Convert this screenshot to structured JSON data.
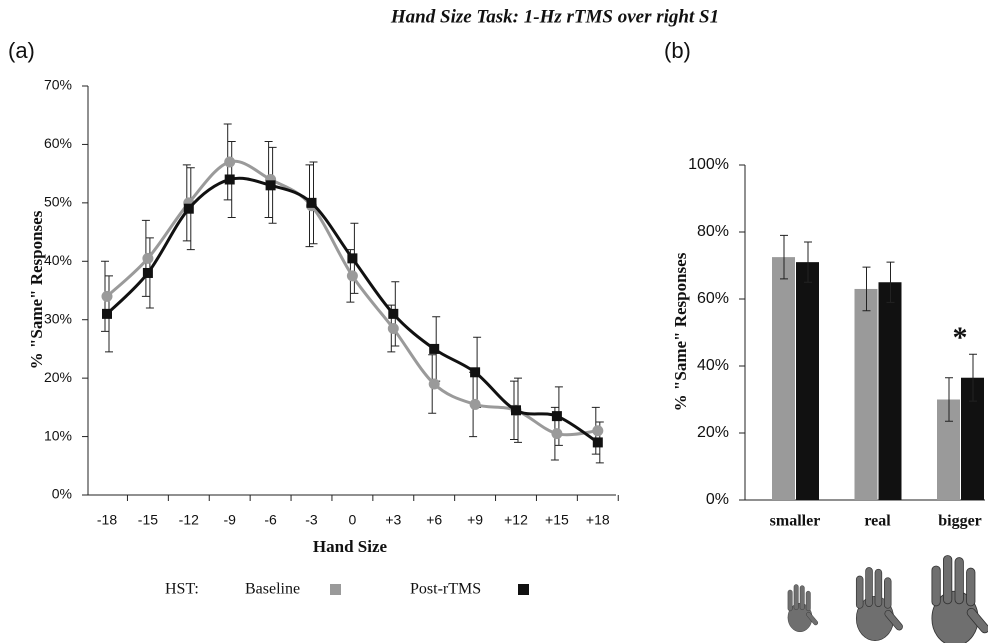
{
  "title": "Hand Size Task: 1-Hz rTMS over right S1",
  "legend_label": "HST:",
  "chart_data": [
    {
      "type": "line",
      "panel": "(a)",
      "x_label": "Hand Size",
      "y_label": "% \"Same\" Responses",
      "categories": [
        "-18",
        "-15",
        "-12",
        "-9",
        "-6",
        "-3",
        "0",
        "+3",
        "+6",
        "+9",
        "+12",
        "+15",
        "+18"
      ],
      "series": [
        {
          "name": "Baseline",
          "color": "#9a9a9a",
          "marker": "circle",
          "values": [
            34,
            40.5,
            50,
            57,
            54,
            49.5,
            37.5,
            28.5,
            19,
            15.5,
            14.5,
            10.5,
            11
          ],
          "errors": [
            6,
            6.5,
            6.5,
            6.5,
            6.5,
            7,
            4.5,
            4,
            5,
            5.5,
            5,
            4.5,
            4
          ]
        },
        {
          "name": "Post-rTMS",
          "color": "#111111",
          "marker": "square",
          "values": [
            31,
            38,
            49,
            54,
            53,
            50,
            40.5,
            31,
            25,
            21,
            14.5,
            13.5,
            9
          ],
          "errors": [
            6.5,
            6,
            7,
            6.5,
            6.5,
            7,
            6,
            5.5,
            5.5,
            6,
            5.5,
            5,
            3.5
          ]
        }
      ],
      "ylim": [
        0,
        70
      ],
      "yticks": [
        {
          "value": 0,
          "label": "0%"
        },
        {
          "value": 10,
          "label": "10%"
        },
        {
          "value": 20,
          "label": "20%"
        },
        {
          "value": 30,
          "label": "30%"
        },
        {
          "value": 40,
          "label": "40%"
        },
        {
          "value": 50,
          "label": "50%"
        },
        {
          "value": 60,
          "label": "60%"
        },
        {
          "value": 70,
          "label": "70%"
        }
      ]
    },
    {
      "type": "bar",
      "panel": "(b)",
      "y_label": "% \"Same\" Responses",
      "categories": [
        "smaller",
        "real",
        "bigger"
      ],
      "series": [
        {
          "color": "#9a9a9a",
          "values": [
            72.5,
            63,
            30
          ],
          "errors": [
            6.5,
            6.5,
            6.5
          ]
        },
        {
          "color": "#111111",
          "values": [
            71,
            65,
            36.5
          ],
          "errors": [
            6,
            6,
            7
          ]
        }
      ],
      "annotation": "*",
      "ylim": [
        0,
        100
      ],
      "yticks": [
        {
          "value": 0,
          "label": "0%"
        },
        {
          "value": 20,
          "label": "20%"
        },
        {
          "value": 40,
          "label": "40%"
        },
        {
          "value": 60,
          "label": "60%"
        },
        {
          "value": 80,
          "label": "80%"
        },
        {
          "value": 100,
          "label": "100%"
        }
      ]
    }
  ]
}
